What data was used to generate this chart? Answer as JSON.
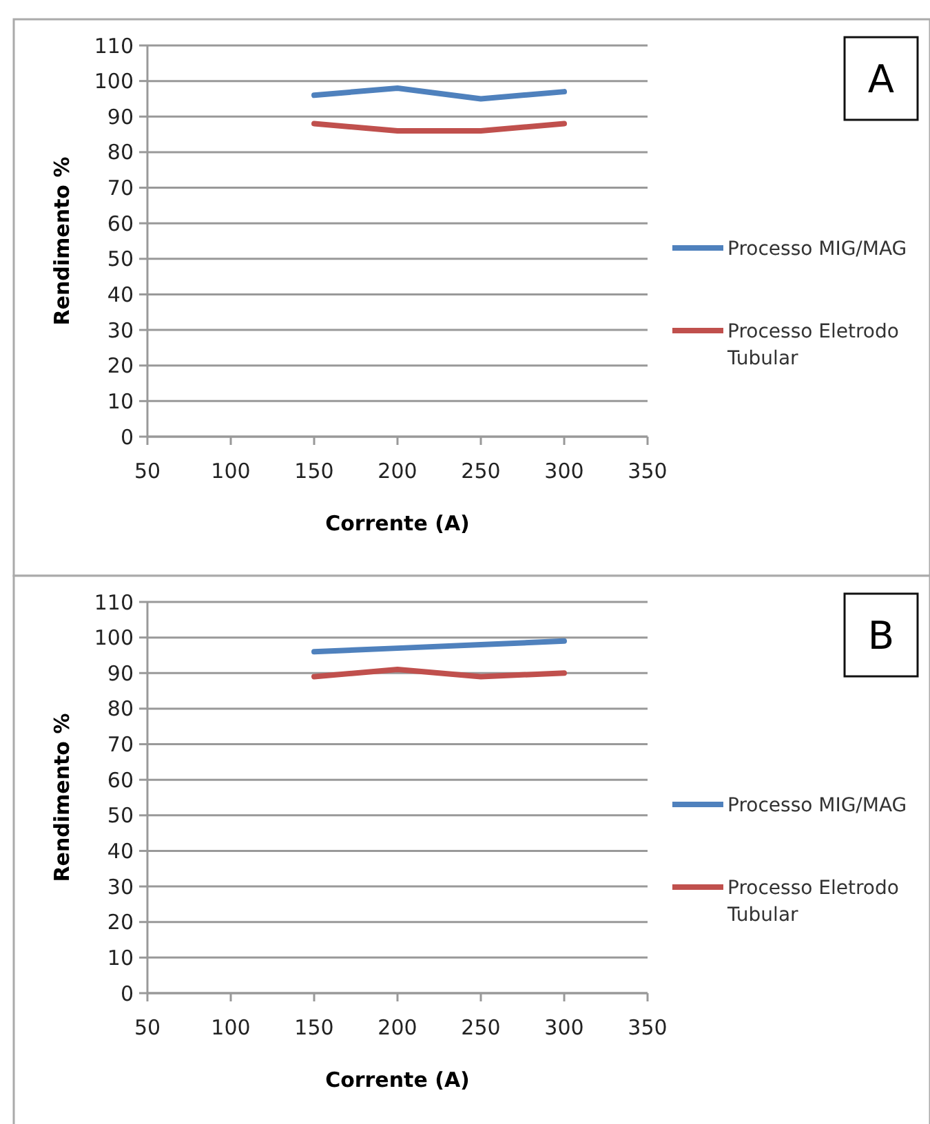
{
  "chart_data": [
    {
      "type": "line",
      "xlabel": "Corrente (A)",
      "ylabel": "Rendimento %",
      "annotations": [
        "A"
      ],
      "x": [
        150,
        200,
        250,
        300
      ],
      "xlim": [
        50,
        350
      ],
      "xticks": [
        50,
        100,
        150,
        200,
        250,
        300,
        350
      ],
      "ylim": [
        0,
        110
      ],
      "yticks": [
        0,
        10,
        20,
        30,
        40,
        50,
        60,
        70,
        80,
        90,
        100,
        110
      ],
      "grid": "y",
      "legend": "right",
      "series": [
        {
          "name": "Processo MIG/MAG",
          "color": "#4f81bd",
          "values": [
            96,
            98,
            95,
            97
          ]
        },
        {
          "name": "Processo Eletrodo Tubular",
          "color": "#c0504d",
          "values": [
            88,
            86,
            86,
            88
          ]
        }
      ]
    },
    {
      "type": "line",
      "xlabel": "Corrente (A)",
      "ylabel": "Rendimento %",
      "annotations": [
        "B"
      ],
      "x": [
        150,
        200,
        250,
        300
      ],
      "xlim": [
        50,
        350
      ],
      "xticks": [
        50,
        100,
        150,
        200,
        250,
        300,
        350
      ],
      "ylim": [
        0,
        110
      ],
      "yticks": [
        0,
        10,
        20,
        30,
        40,
        50,
        60,
        70,
        80,
        90,
        100,
        110
      ],
      "grid": "y",
      "legend": "right",
      "series": [
        {
          "name": "Processo MIG/MAG",
          "color": "#4f81bd",
          "values": [
            96,
            97,
            98,
            99
          ]
        },
        {
          "name": "Processo Eletrodo Tubular",
          "color": "#c0504d",
          "values": [
            89,
            91,
            89,
            90
          ]
        }
      ]
    }
  ]
}
